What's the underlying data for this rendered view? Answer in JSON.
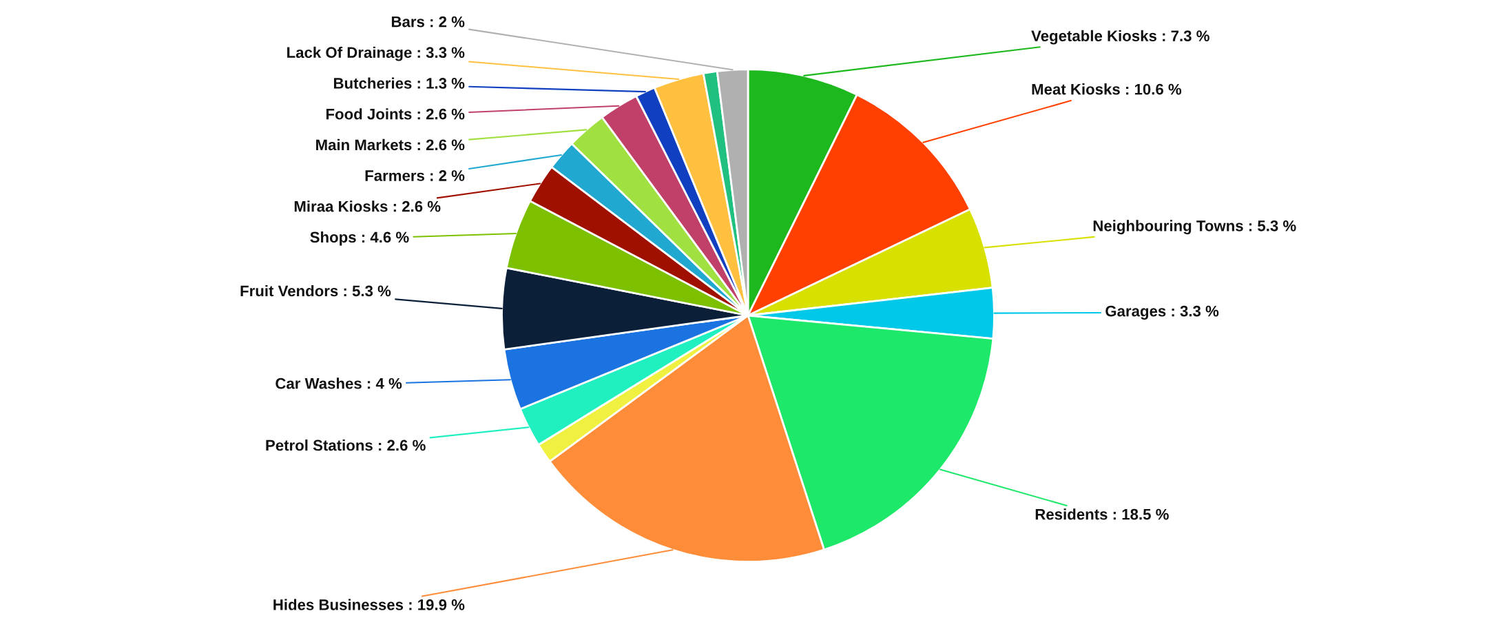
{
  "chart_data": {
    "type": "pie",
    "categories": [
      "Vegetable Kiosks",
      "Meat Kiosks",
      "Neighbouring Towns",
      "Garages",
      "Residents",
      "Hides Businesses",
      null,
      "Petrol Stations",
      "Car Washes",
      "Fruit Vendors",
      "Shops",
      "Miraa Kiosks",
      "Farmers",
      "Main Markets",
      "Food Joints",
      "Butcheries",
      "Lack Of Drainage",
      null,
      "Bars"
    ],
    "values": [
      7.3,
      10.6,
      5.3,
      3.3,
      18.5,
      19.9,
      1.3,
      2.6,
      4,
      5.3,
      4.6,
      2.6,
      2,
      2.6,
      2.6,
      1.3,
      3.3,
      0.9,
      2
    ],
    "value_labels": [
      "7.3 %",
      "10.6 %",
      "5.3 %",
      "3.3 %",
      "18.5 %",
      "19.9 %",
      null,
      "2.6 %",
      "4 %",
      "5.3 %",
      "4.6 %",
      "2.6 %",
      "2 %",
      "2.6 %",
      "2.6 %",
      "1.3 %",
      "3.3 %",
      null,
      "2 %"
    ],
    "colors": [
      "#1db81d",
      "#ff4000",
      "#d8e000",
      "#00c8e8",
      "#1ee86a",
      "#ff8c38",
      "#f0f040",
      "#20f0c0",
      "#1a73e0",
      "#0b2038",
      "#7cc000",
      "#a01000",
      "#20a8d0",
      "#a0e040",
      "#c0406a",
      "#1040c0",
      "#ffc040",
      "#20c080",
      "#b0b0b0"
    ]
  }
}
